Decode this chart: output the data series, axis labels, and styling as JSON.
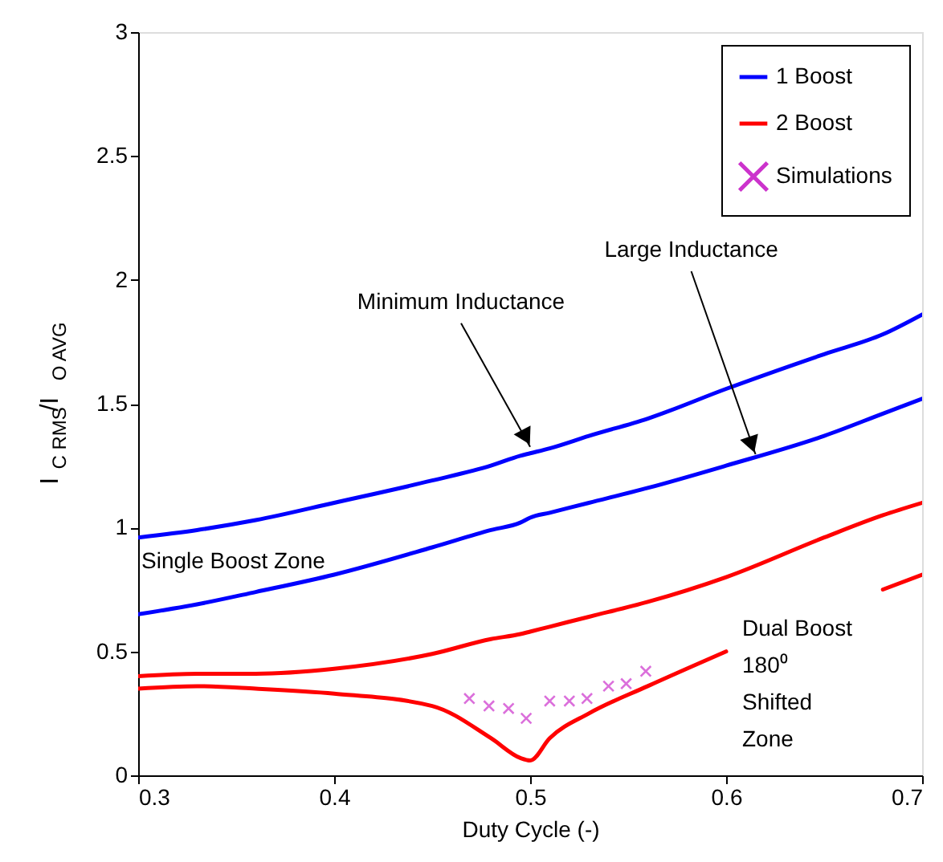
{
  "chart_data": {
    "type": "line",
    "xlabel": "Duty Cycle (-)",
    "ylabel": "I$_{C RMS}$/I$_{O AVG}$",
    "x": [
      0.3,
      0.33,
      0.36,
      0.4,
      0.45,
      0.48,
      0.495,
      0.5,
      0.51,
      0.53,
      0.56,
      0.6,
      0.65,
      0.68,
      0.7
    ],
    "series": [
      {
        "name": "1 Boost",
        "color": "#0000ff",
        "values": [
          0.96,
          0.99,
          1.03,
          1.1,
          1.19,
          1.25,
          1.29,
          1.3,
          1.32,
          1.37,
          1.44,
          1.56,
          1.7,
          1.78,
          1.86
        ]
      },
      {
        "color": "#0000ff",
        "values": [
          0.65,
          0.69,
          0.74,
          0.81,
          0.92,
          0.99,
          1.02,
          1.04,
          1.06,
          1.1,
          1.16,
          1.25,
          1.37,
          1.46,
          1.52
        ]
      },
      {
        "name": "2 Boost",
        "color": "#ff0000",
        "values": [
          0.4,
          0.41,
          0.41,
          0.43,
          0.49,
          0.55,
          0.57,
          0.58,
          0.6,
          0.64,
          0.7,
          0.8,
          0.96,
          1.05,
          1.1
        ]
      },
      {
        "color": "#ff0000",
        "values": [
          0.35,
          0.36,
          0.35,
          0.33,
          0.28,
          0.15,
          0.07,
          0.06,
          0.15,
          0.25,
          0.36,
          0.5,
          null,
          0.75,
          0.81
        ]
      },
      {
        "name": "Simulations",
        "type": "scatter",
        "marker": "cross",
        "color": "#cc33cc",
        "x": [
          0.469,
          0.479,
          0.489,
          0.498,
          0.51,
          0.52,
          0.529,
          0.54,
          0.549,
          0.559
        ],
        "values": [
          0.31,
          0.28,
          0.27,
          0.23,
          0.3,
          0.3,
          0.31,
          0.36,
          0.37,
          0.42
        ]
      }
    ],
    "xlim": [
      0.3,
      0.7
    ],
    "xticks": [
      0.3,
      0.4,
      0.5,
      0.6,
      0.7
    ],
    "ylim": [
      0,
      3
    ],
    "yticks": [
      0,
      0.5,
      1,
      1.5,
      2,
      2.5,
      3
    ],
    "grid": false,
    "legend": "top right",
    "line_style": "solid",
    "annotations": [
      {
        "text": "Minimum Inductance",
        "x": 0.5,
        "y": 1.3
      },
      {
        "text": "Large Inductance",
        "x": 0.615,
        "y": 1.27
      },
      "Single Boost Zone",
      "Dual Boost\n180⁰\nShifted\nZone"
    ]
  }
}
